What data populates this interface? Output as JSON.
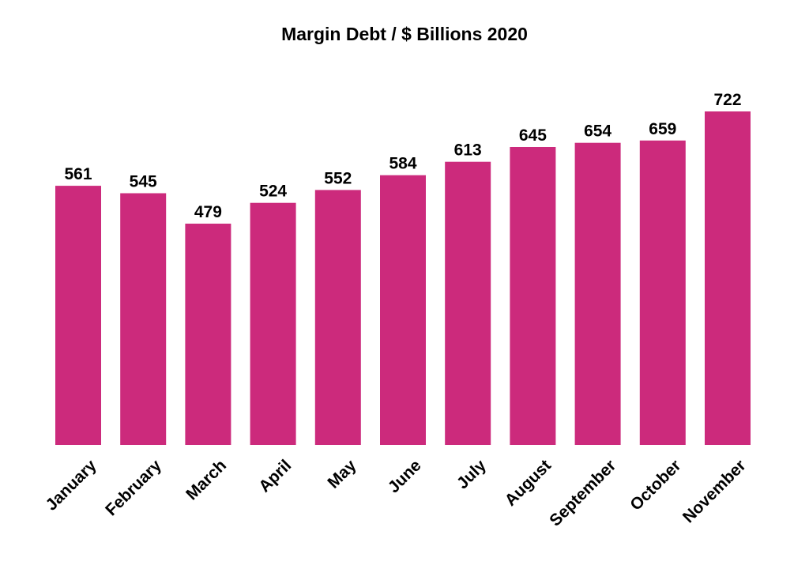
{
  "chart_data": {
    "type": "bar",
    "title": "Margin Debt / $ Billions 2020",
    "xlabel": "",
    "ylabel": "",
    "categories": [
      "January",
      "February",
      "March",
      "April",
      "May",
      "June",
      "July",
      "August",
      "September",
      "October",
      "November"
    ],
    "values": [
      561,
      545,
      479,
      524,
      552,
      584,
      613,
      645,
      654,
      659,
      722
    ],
    "ylim": [
      0,
      722
    ],
    "grid": false,
    "bar_color": "#CC2A7C",
    "data_labels": true
  }
}
